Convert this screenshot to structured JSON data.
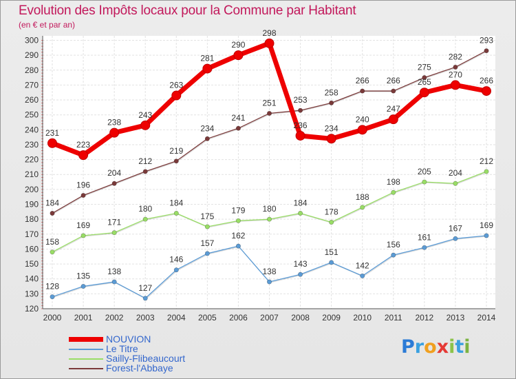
{
  "header": {
    "title": "Evolution des Impôts locaux pour la Commune par Habitant",
    "subtitle": "(en € et par an)"
  },
  "chart_data": {
    "type": "line",
    "title": "Evolution des Impôts locaux pour la Commune par Habitant",
    "subtitle": "(en € et par an)",
    "x": [
      2000,
      2001,
      2002,
      2003,
      2004,
      2005,
      2006,
      2007,
      2008,
      2009,
      2010,
      2011,
      2012,
      2013,
      2014
    ],
    "x_tick_labels": [
      "2000",
      "2001",
      "2002",
      "2003",
      "2004",
      "2005",
      "2006",
      "2007",
      "2008",
      "2009",
      "2010",
      "2011",
      "2012",
      "2013",
      "2014"
    ],
    "y_ticks": [
      120,
      130,
      140,
      150,
      160,
      170,
      180,
      190,
      200,
      210,
      220,
      230,
      240,
      250,
      260,
      270,
      280,
      290,
      300
    ],
    "ylim": [
      120,
      303
    ],
    "grid": true,
    "legend_position": "bottom-left",
    "series": [
      {
        "name": "NOUVION",
        "color": "#ee0000",
        "emphasis": true,
        "values": [
          231,
          223,
          238,
          243,
          263,
          281,
          290,
          298,
          236,
          234,
          240,
          247,
          265,
          270,
          266
        ]
      },
      {
        "name": "Le Titre",
        "color": "#5b9bd5",
        "values": [
          128,
          135,
          138,
          127,
          146,
          157,
          162,
          138,
          143,
          151,
          142,
          156,
          161,
          167,
          169
        ]
      },
      {
        "name": "Sailly-Flibeaucourt",
        "color": "#99dd66",
        "values": [
          158,
          169,
          171,
          180,
          184,
          175,
          179,
          180,
          184,
          178,
          188,
          198,
          205,
          204,
          212
        ]
      },
      {
        "name": "Forest-l'Abbaye",
        "color": "#7a3a3a",
        "values": [
          184,
          196,
          204,
          212,
          219,
          234,
          241,
          251,
          253,
          258,
          266,
          266,
          275,
          282,
          293
        ]
      }
    ]
  },
  "logo": {
    "letters": [
      "P",
      "r",
      "o",
      "x",
      "i",
      "t",
      "i"
    ],
    "colors": [
      "#2b7bd6",
      "#3aa0e0",
      "#f0a020",
      "#e53935",
      "#8bc34a",
      "#3aa0e0",
      "#7cb342"
    ]
  }
}
